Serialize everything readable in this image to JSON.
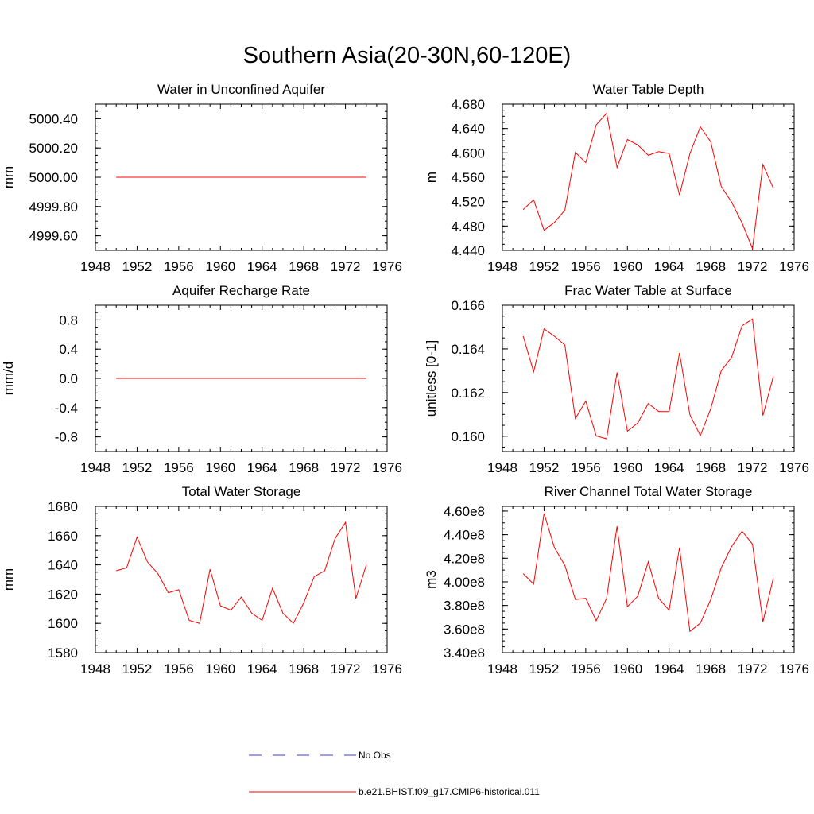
{
  "figure": {
    "title": "Southern Asia(20-30N,60-120E)"
  },
  "legend": {
    "entries": [
      {
        "label": "No Obs",
        "color": "#3b3bd6",
        "style": "dashed"
      },
      {
        "label": "b.e21.BHIST.f09_g17.CMIP6-historical.011",
        "color": "#ff0000",
        "style": "solid"
      }
    ]
  },
  "chart_data": [
    {
      "type": "line",
      "title": "Water in Unconfined Aquifer",
      "ylabel": "mm",
      "xlim": [
        1948,
        1976
      ],
      "ylim": [
        4999.5,
        5000.5
      ],
      "xticks": [
        1948,
        1952,
        1956,
        1960,
        1964,
        1968,
        1972,
        1976
      ],
      "yticks": [
        4999.6,
        4999.8,
        5000.0,
        5000.2,
        5000.4
      ],
      "ytick_labels": [
        "4999.60",
        "4999.80",
        "5000.00",
        "5000.20",
        "5000.40"
      ],
      "series": [
        {
          "name": "b.e21.BHIST.f09_g17.CMIP6-historical.011",
          "color": "#ff0000",
          "x": [
            1950,
            1951,
            1952,
            1953,
            1954,
            1955,
            1956,
            1957,
            1958,
            1959,
            1960,
            1961,
            1962,
            1963,
            1964,
            1965,
            1966,
            1967,
            1968,
            1969,
            1970,
            1971,
            1972,
            1973,
            1974
          ],
          "y": [
            5000,
            5000,
            5000,
            5000,
            5000,
            5000,
            5000,
            5000,
            5000,
            5000,
            5000,
            5000,
            5000,
            5000,
            5000,
            5000,
            5000,
            5000,
            5000,
            5000,
            5000,
            5000,
            5000,
            5000,
            5000
          ]
        }
      ]
    },
    {
      "type": "line",
      "title": "Water Table Depth",
      "ylabel": "m",
      "xlim": [
        1948,
        1976
      ],
      "ylim": [
        4.44,
        4.68
      ],
      "xticks": [
        1948,
        1952,
        1956,
        1960,
        1964,
        1968,
        1972,
        1976
      ],
      "yticks": [
        4.44,
        4.48,
        4.52,
        4.56,
        4.6,
        4.64,
        4.68
      ],
      "ytick_labels": [
        "4.440",
        "4.480",
        "4.520",
        "4.560",
        "4.600",
        "4.640",
        "4.680"
      ],
      "series": [
        {
          "name": "b.e21.BHIST.f09_g17.CMIP6-historical.011",
          "color": "#ff0000",
          "x": [
            1950,
            1951,
            1952,
            1953,
            1954,
            1955,
            1956,
            1957,
            1958,
            1959,
            1960,
            1961,
            1962,
            1963,
            1964,
            1965,
            1966,
            1967,
            1968,
            1969,
            1970,
            1971,
            1972,
            1973,
            1974
          ],
          "y": [
            4.507,
            4.523,
            4.473,
            4.486,
            4.506,
            4.601,
            4.584,
            4.646,
            4.665,
            4.576,
            4.622,
            4.613,
            4.596,
            4.602,
            4.599,
            4.531,
            4.599,
            4.643,
            4.618,
            4.545,
            4.519,
            4.485,
            4.443,
            4.581,
            4.542
          ]
        }
      ]
    },
    {
      "type": "line",
      "title": "Aquifer Recharge Rate",
      "ylabel": "mm/d",
      "xlim": [
        1948,
        1976
      ],
      "ylim": [
        -1.0,
        1.0
      ],
      "xticks": [
        1948,
        1952,
        1956,
        1960,
        1964,
        1968,
        1972,
        1976
      ],
      "yticks": [
        -0.8,
        -0.4,
        0.0,
        0.4,
        0.8
      ],
      "ytick_labels": [
        "-0.8",
        "-0.4",
        "0.0",
        "0.4",
        "0.8"
      ],
      "series": [
        {
          "name": "b.e21.BHIST.f09_g17.CMIP6-historical.011",
          "color": "#ff0000",
          "x": [
            1950,
            1951,
            1952,
            1953,
            1954,
            1955,
            1956,
            1957,
            1958,
            1959,
            1960,
            1961,
            1962,
            1963,
            1964,
            1965,
            1966,
            1967,
            1968,
            1969,
            1970,
            1971,
            1972,
            1973,
            1974
          ],
          "y": [
            0,
            0,
            0,
            0,
            0,
            0,
            0,
            0,
            0,
            0,
            0,
            0,
            0,
            0,
            0,
            0,
            0,
            0,
            0,
            0,
            0,
            0,
            0,
            0,
            0
          ]
        }
      ]
    },
    {
      "type": "line",
      "title": "Frac Water Table at Surface",
      "ylabel": "unitless [0-1]",
      "xlim": [
        1948,
        1976
      ],
      "ylim": [
        0.1593,
        0.166
      ],
      "xticks": [
        1948,
        1952,
        1956,
        1960,
        1964,
        1968,
        1972,
        1976
      ],
      "yticks": [
        0.16,
        0.162,
        0.164,
        0.166
      ],
      "ytick_labels": [
        "0.160",
        "0.162",
        "0.164",
        "0.166"
      ],
      "series": [
        {
          "name": "b.e21.BHIST.f09_g17.CMIP6-historical.011",
          "color": "#ff0000",
          "x": [
            1950,
            1951,
            1952,
            1953,
            1954,
            1955,
            1956,
            1957,
            1958,
            1959,
            1960,
            1961,
            1962,
            1963,
            1964,
            1965,
            1966,
            1967,
            1968,
            1969,
            1970,
            1971,
            1972,
            1973,
            1974
          ],
          "y": [
            0.16458,
            0.16295,
            0.16492,
            0.16458,
            0.16418,
            0.16081,
            0.16161,
            0.16001,
            0.15988,
            0.16292,
            0.16023,
            0.16061,
            0.1615,
            0.16113,
            0.16113,
            0.16381,
            0.16098,
            0.16003,
            0.16126,
            0.163,
            0.16362,
            0.16506,
            0.16537,
            0.16095,
            0.16274
          ]
        }
      ]
    },
    {
      "type": "line",
      "title": "Total Water Storage",
      "ylabel": "mm",
      "xlim": [
        1948,
        1976
      ],
      "ylim": [
        1580,
        1680
      ],
      "xticks": [
        1948,
        1952,
        1956,
        1960,
        1964,
        1968,
        1972,
        1976
      ],
      "yticks": [
        1580,
        1600,
        1620,
        1640,
        1660,
        1680
      ],
      "ytick_labels": [
        "1580",
        "1600",
        "1620",
        "1640",
        "1660",
        "1680"
      ],
      "series": [
        {
          "name": "b.e21.BHIST.f09_g17.CMIP6-historical.011",
          "color": "#ff0000",
          "x": [
            1950,
            1951,
            1952,
            1953,
            1954,
            1955,
            1956,
            1957,
            1958,
            1959,
            1960,
            1961,
            1962,
            1963,
            1964,
            1965,
            1966,
            1967,
            1968,
            1969,
            1970,
            1971,
            1972,
            1973,
            1974
          ],
          "y": [
            1636,
            1638,
            1659,
            1642,
            1634,
            1621,
            1623,
            1602,
            1600,
            1637,
            1612,
            1609,
            1618,
            1607,
            1602,
            1624,
            1607,
            1600,
            1614,
            1632,
            1636,
            1658,
            1669,
            1617,
            1640
          ]
        }
      ]
    },
    {
      "type": "line",
      "title": "River Channel Total Water Storage",
      "ylabel": "m3",
      "xlim": [
        1948,
        1976
      ],
      "ylim": [
        340000000.0,
        464000000.0
      ],
      "xticks": [
        1948,
        1952,
        1956,
        1960,
        1964,
        1968,
        1972,
        1976
      ],
      "yticks": [
        340000000.0,
        360000000.0,
        380000000.0,
        400000000.0,
        420000000.0,
        440000000.0,
        460000000.0
      ],
      "ytick_labels": [
        "3.40e8",
        "3.60e8",
        "3.80e8",
        "4.00e8",
        "4.20e8",
        "4.40e8",
        "4.60e8"
      ],
      "series": [
        {
          "name": "b.e21.BHIST.f09_g17.CMIP6-historical.011",
          "color": "#ff0000",
          "x": [
            1950,
            1951,
            1952,
            1953,
            1954,
            1955,
            1956,
            1957,
            1958,
            1959,
            1960,
            1961,
            1962,
            1963,
            1964,
            1965,
            1966,
            1967,
            1968,
            1969,
            1970,
            1971,
            1972,
            1973,
            1974
          ],
          "y": [
            407000000.0,
            398000000.0,
            458000000.0,
            429000000.0,
            414000000.0,
            385000000.0,
            386000000.0,
            367000000.0,
            386000000.0,
            447000000.0,
            379000000.0,
            388000000.0,
            417000000.0,
            386000000.0,
            376000000.0,
            429000000.0,
            358000000.0,
            365000000.0,
            385000000.0,
            412000000.0,
            430000000.0,
            443000000.0,
            432000000.0,
            366000000.0,
            403000000.0
          ]
        }
      ]
    }
  ]
}
